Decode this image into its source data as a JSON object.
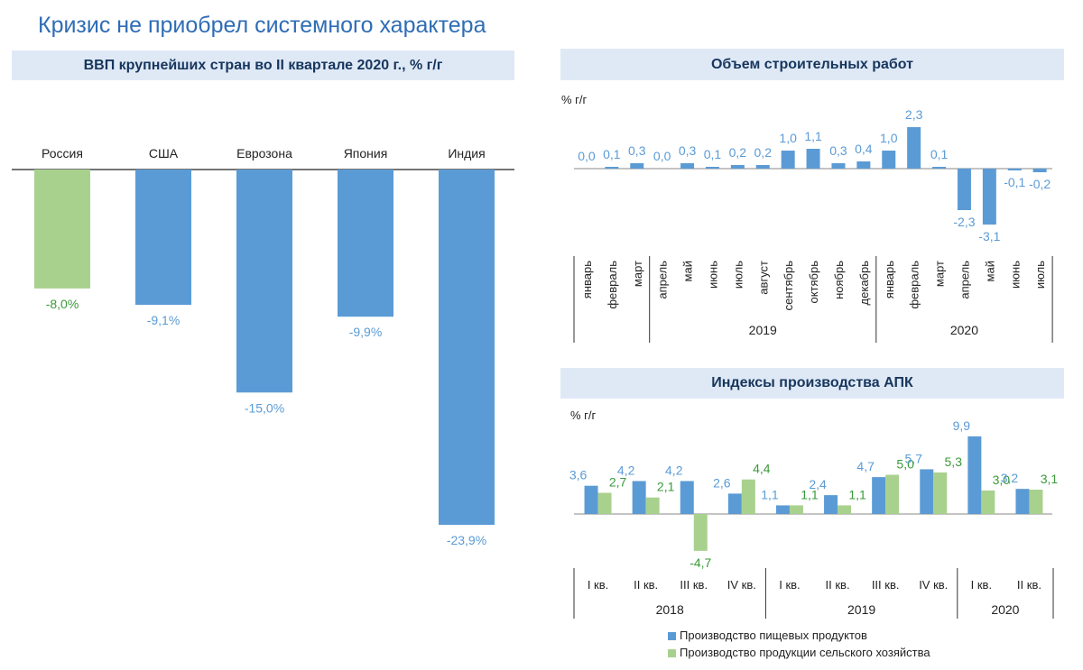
{
  "page_title": "Кризис не приобрел системного характера",
  "colors": {
    "blue": "#5b9bd5",
    "green": "#a9d18e",
    "green_label": "#3a9a3a",
    "blue_label": "#5b9bd5",
    "header_bg": "#dfe9f6",
    "header_text": "#17365d"
  },
  "chart_data": [
    {
      "id": "gdp",
      "type": "bar",
      "title": "ВВП крупнейших стран во II квартале 2020 г., % г/г",
      "categories": [
        "Россия",
        "США",
        "Еврозона",
        "Япония",
        "Индия"
      ],
      "values": [
        -8.0,
        -9.1,
        -15.0,
        -9.9,
        -23.9
      ],
      "labels": [
        "-8,0%",
        "-9,1%",
        "-15,0%",
        "-9,9%",
        "-23,9%"
      ],
      "highlight": "Россия",
      "ylim": [
        -25,
        0
      ]
    },
    {
      "id": "construction",
      "type": "bar",
      "title": "Объем строительных работ",
      "ylabel": "% г/г",
      "categories": [
        "январь",
        "февраль",
        "март",
        "апрель",
        "май",
        "июнь",
        "июль",
        "август",
        "сентябрь",
        "октябрь",
        "ноябрь",
        "декабрь",
        "январь",
        "февраль",
        "март",
        "апрель",
        "май",
        "июнь",
        "июль"
      ],
      "values": [
        0.0,
        0.1,
        0.3,
        0.0,
        0.3,
        0.1,
        0.2,
        0.2,
        1.0,
        1.1,
        0.3,
        0.4,
        1.0,
        2.3,
        0.1,
        -2.3,
        -3.1,
        -0.1,
        -0.2
      ],
      "labels": [
        "0,0",
        "0,1",
        "0,3",
        "0,0",
        "0,3",
        "0,1",
        "0,2",
        "0,2",
        "1,0",
        "1,1",
        "0,3",
        "0,4",
        "1,0",
        "2,3",
        "0,1",
        "-2,3",
        "-3,1",
        "-0,1",
        "-0,2"
      ],
      "groups": [
        {
          "name": "",
          "count": 3
        },
        {
          "name": "2019",
          "count": 9
        },
        {
          "name": "2020",
          "count": 7
        }
      ]
    },
    {
      "id": "apk",
      "type": "bar",
      "title": "Индексы производства АПК",
      "ylabel": "% г/г",
      "categories": [
        "I кв.",
        "II кв.",
        "III кв.",
        "IV кв.",
        "I кв.",
        "II кв.",
        "III кв.",
        "IV кв.",
        "I кв.",
        "II кв."
      ],
      "groups": [
        {
          "name": "2018",
          "count": 4
        },
        {
          "name": "2019",
          "count": 4
        },
        {
          "name": "2020",
          "count": 2
        }
      ],
      "series": [
        {
          "name": "Производство пищевых продуктов",
          "values": [
            3.6,
            4.2,
            4.2,
            2.6,
            1.1,
            2.4,
            4.7,
            5.7,
            9.9,
            3.2
          ],
          "labels": [
            "3,6",
            "4,2",
            "4,2",
            "2,6",
            "1,1",
            "2,4",
            "4,7",
            "5,7",
            "9,9",
            "3,2"
          ]
        },
        {
          "name": "Производство продукции сельского хозяйства",
          "values": [
            2.7,
            2.1,
            -4.7,
            4.4,
            1.1,
            1.1,
            5.0,
            5.3,
            3.0,
            3.1
          ],
          "labels": [
            "2,7",
            "2,1",
            "-4,7",
            "4,4",
            "1,1",
            "1,1",
            "5,0",
            "5,3",
            "3,0",
            "3,1"
          ]
        }
      ]
    }
  ]
}
